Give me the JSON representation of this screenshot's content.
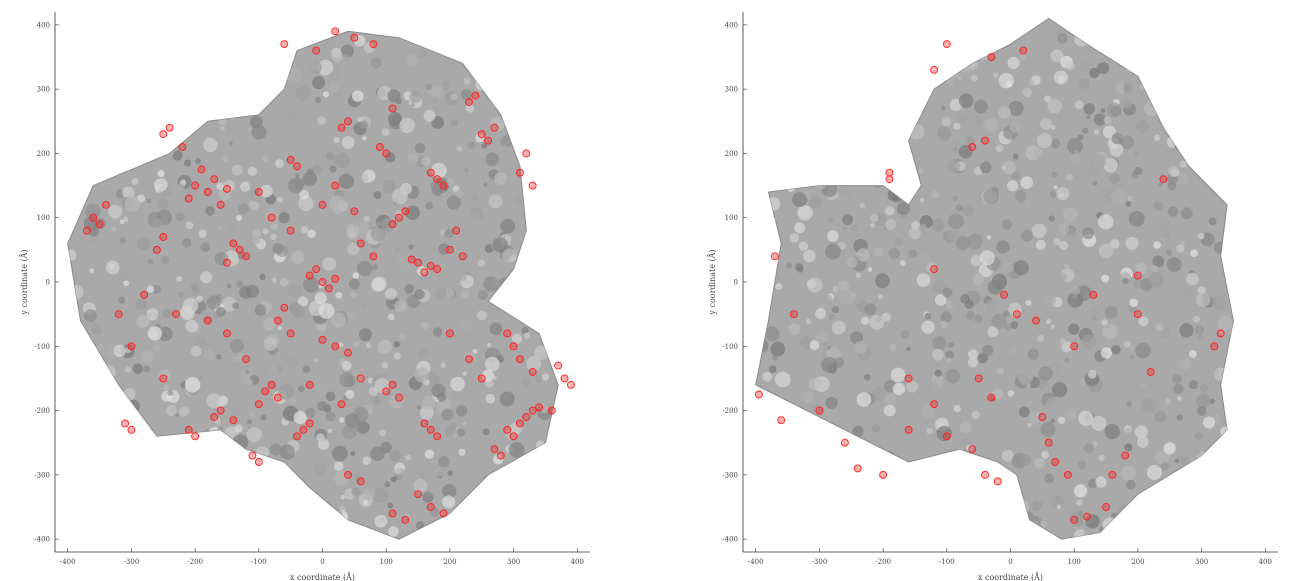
{
  "chart_data": [
    {
      "type": "scatter",
      "title": "",
      "xlabel": "x coordinate (Å)",
      "ylabel": "y coordinate (Å)",
      "xlim": [
        -420,
        420
      ],
      "ylim": [
        -420,
        420
      ],
      "x_ticks": [
        -400,
        -300,
        -200,
        -100,
        0,
        100,
        200,
        300,
        400
      ],
      "y_ticks": [
        -400,
        -300,
        -200,
        -100,
        0,
        100,
        200,
        300,
        400
      ],
      "grid": false,
      "background_structure": "gray protein complex surface",
      "series": [
        {
          "color": "#ff2020",
          "marker": "open circle",
          "points": [
            [
              -200,
              150
            ],
            [
              -180,
              140
            ],
            [
              -170,
              160
            ],
            [
              -150,
              145
            ],
            [
              -210,
              130
            ],
            [
              -190,
              175
            ],
            [
              -160,
              120
            ],
            [
              -140,
              60
            ],
            [
              -130,
              50
            ],
            [
              -150,
              30
            ],
            [
              -120,
              40
            ],
            [
              -10,
              20
            ],
            [
              0,
              0
            ],
            [
              10,
              -10
            ],
            [
              -20,
              10
            ],
            [
              20,
              5
            ],
            [
              150,
              30
            ],
            [
              170,
              25
            ],
            [
              180,
              20
            ],
            [
              160,
              15
            ],
            [
              140,
              35
            ],
            [
              120,
              100
            ],
            [
              110,
              90
            ],
            [
              130,
              110
            ],
            [
              180,
              160
            ],
            [
              190,
              150
            ],
            [
              170,
              170
            ],
            [
              100,
              200
            ],
            [
              90,
              210
            ],
            [
              -50,
              190
            ],
            [
              -40,
              180
            ],
            [
              40,
              250
            ],
            [
              30,
              240
            ],
            [
              110,
              270
            ],
            [
              230,
              280
            ],
            [
              240,
              290
            ],
            [
              -360,
              100
            ],
            [
              -350,
              90
            ],
            [
              -340,
              120
            ],
            [
              -370,
              80
            ],
            [
              -250,
              70
            ],
            [
              -260,
              50
            ],
            [
              -280,
              -20
            ],
            [
              -230,
              -50
            ],
            [
              -70,
              -60
            ],
            [
              -50,
              -80
            ],
            [
              -60,
              -40
            ],
            [
              20,
              -100
            ],
            [
              40,
              -110
            ],
            [
              0,
              -90
            ],
            [
              -80,
              -160
            ],
            [
              -70,
              -180
            ],
            [
              -90,
              -170
            ],
            [
              -100,
              -190
            ],
            [
              -30,
              -230
            ],
            [
              -40,
              -240
            ],
            [
              -20,
              -220
            ],
            [
              100,
              -170
            ],
            [
              120,
              -180
            ],
            [
              110,
              -160
            ],
            [
              170,
              -230
            ],
            [
              180,
              -240
            ],
            [
              160,
              -220
            ],
            [
              290,
              -230
            ],
            [
              300,
              -240
            ],
            [
              310,
              -220
            ],
            [
              320,
              -210
            ],
            [
              330,
              -200
            ],
            [
              340,
              -195
            ],
            [
              270,
              -260
            ],
            [
              280,
              -270
            ],
            [
              -160,
              -200
            ],
            [
              -170,
              -210
            ],
            [
              -140,
              -215
            ],
            [
              -300,
              -230
            ],
            [
              -310,
              -220
            ],
            [
              -200,
              -240
            ],
            [
              -210,
              -230
            ],
            [
              150,
              -330
            ],
            [
              170,
              -350
            ],
            [
              190,
              -360
            ],
            [
              130,
              -370
            ],
            [
              110,
              -360
            ],
            [
              40,
              -300
            ],
            [
              60,
              -310
            ],
            [
              300,
              -100
            ],
            [
              310,
              -120
            ],
            [
              290,
              -80
            ],
            [
              330,
              -140
            ],
            [
              370,
              -130
            ],
            [
              380,
              -150
            ],
            [
              390,
              -160
            ],
            [
              360,
              -200
            ],
            [
              250,
              230
            ],
            [
              260,
              220
            ],
            [
              270,
              240
            ],
            [
              320,
              200
            ],
            [
              330,
              150
            ],
            [
              310,
              170
            ],
            [
              -100,
              -280
            ],
            [
              -110,
              -270
            ],
            [
              200,
              50
            ],
            [
              210,
              80
            ],
            [
              220,
              40
            ],
            [
              -250,
              230
            ],
            [
              -240,
              240
            ],
            [
              -220,
              210
            ],
            [
              50,
              380
            ],
            [
              80,
              370
            ],
            [
              20,
              390
            ],
            [
              -60,
              370
            ],
            [
              -10,
              360
            ],
            [
              -50,
              80
            ],
            [
              60,
              60
            ],
            [
              80,
              40
            ],
            [
              -80,
              100
            ],
            [
              -100,
              140
            ],
            [
              230,
              -120
            ],
            [
              250,
              -150
            ],
            [
              200,
              -80
            ],
            [
              -20,
              -160
            ],
            [
              30,
              -190
            ],
            [
              60,
              -150
            ],
            [
              -250,
              -150
            ],
            [
              -300,
              -100
            ],
            [
              -320,
              -50
            ],
            [
              0,
              120
            ],
            [
              20,
              150
            ],
            [
              50,
              110
            ],
            [
              -120,
              -120
            ],
            [
              -150,
              -80
            ],
            [
              -180,
              -60
            ]
          ]
        }
      ]
    },
    {
      "type": "scatter",
      "title": "",
      "xlabel": "x coordinate (Å)",
      "ylabel": "y coordinate (Å)",
      "xlim": [
        -420,
        420
      ],
      "ylim": [
        -420,
        420
      ],
      "x_ticks": [
        -400,
        -300,
        -200,
        -100,
        0,
        100,
        200,
        300,
        400
      ],
      "y_ticks": [
        -400,
        -300,
        -200,
        -100,
        0,
        100,
        200,
        300,
        400
      ],
      "grid": false,
      "background_structure": "gray protein complex surface",
      "series": [
        {
          "color": "#ff2020",
          "marker": "open circle",
          "points": [
            [
              -395,
              -175
            ],
            [
              -360,
              -215
            ],
            [
              -300,
              -200
            ],
            [
              -260,
              -250
            ],
            [
              -240,
              -290
            ],
            [
              -200,
              -300
            ],
            [
              -160,
              -230
            ],
            [
              -120,
              -190
            ],
            [
              -100,
              -240
            ],
            [
              -60,
              -260
            ],
            [
              -40,
              -300
            ],
            [
              -20,
              -310
            ],
            [
              -50,
              -150
            ],
            [
              -30,
              -180
            ],
            [
              10,
              -50
            ],
            [
              40,
              -60
            ],
            [
              60,
              -250
            ],
            [
              70,
              -280
            ],
            [
              90,
              -300
            ],
            [
              100,
              -370
            ],
            [
              120,
              -365
            ],
            [
              150,
              -350
            ],
            [
              160,
              -300
            ],
            [
              180,
              -270
            ],
            [
              220,
              -140
            ],
            [
              200,
              -50
            ],
            [
              200,
              10
            ],
            [
              -370,
              40
            ],
            [
              -340,
              -50
            ],
            [
              -160,
              -150
            ],
            [
              -120,
              20
            ],
            [
              -40,
              220
            ],
            [
              -60,
              210
            ],
            [
              -30,
              350
            ],
            [
              -120,
              330
            ],
            [
              -100,
              370
            ],
            [
              20,
              360
            ],
            [
              -190,
              170
            ],
            [
              -190,
              160
            ],
            [
              240,
              160
            ],
            [
              320,
              -100
            ],
            [
              330,
              -80
            ],
            [
              100,
              -100
            ],
            [
              130,
              -20
            ],
            [
              -10,
              -20
            ],
            [
              50,
              -210
            ]
          ]
        }
      ]
    }
  ]
}
